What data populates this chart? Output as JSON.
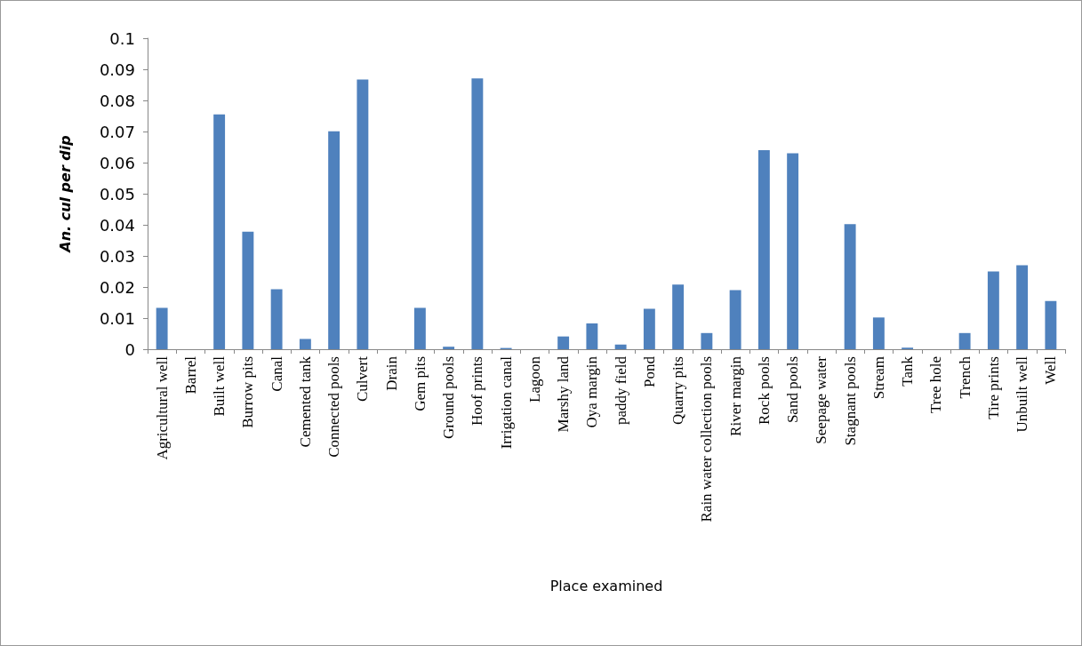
{
  "chart_data": {
    "type": "bar",
    "xlabel": "Place examined",
    "ylabel": "An. cul per dip",
    "categories": [
      "Agricultural well",
      "Barrel",
      "Built well",
      "Burrow pits",
      "Canal",
      "Cemented tank",
      "Connected pools",
      "Culvert",
      "Drain",
      "Gem pits",
      "Ground pools",
      "Hoof prints",
      "Irrigation canal",
      "Lagoon",
      "Marshy land",
      "Oya margin",
      "paddy field",
      "Pond",
      "Quarry pits",
      "Rain water collection pools",
      "River margin",
      "Rock pools",
      "Sand pools",
      "Seepage water",
      "Stagnant pools",
      "Stream",
      "Tank",
      "Tree hole",
      "Trench",
      "Tire prints",
      "Unbuilt well",
      "Well"
    ],
    "values": [
      0.0133,
      0,
      0.0755,
      0.0378,
      0.0193,
      0.0033,
      0.0701,
      0.0867,
      0,
      0.0133,
      0.0008,
      0.0871,
      0.0004,
      0,
      0.0041,
      0.0083,
      0.0015,
      0.013,
      0.0208,
      0.0052,
      0.019,
      0.064,
      0.063,
      0,
      0.0402,
      0.0102,
      0.0005,
      0,
      0.0052,
      0.025,
      0.027,
      0.0155
    ],
    "color": "#4f81bd",
    "ylim": [
      0,
      0.1
    ],
    "yticks": [
      0,
      0.01,
      0.02,
      0.03,
      0.04,
      0.05,
      0.06,
      0.07,
      0.08,
      0.09,
      0.1
    ],
    "grid": false
  }
}
